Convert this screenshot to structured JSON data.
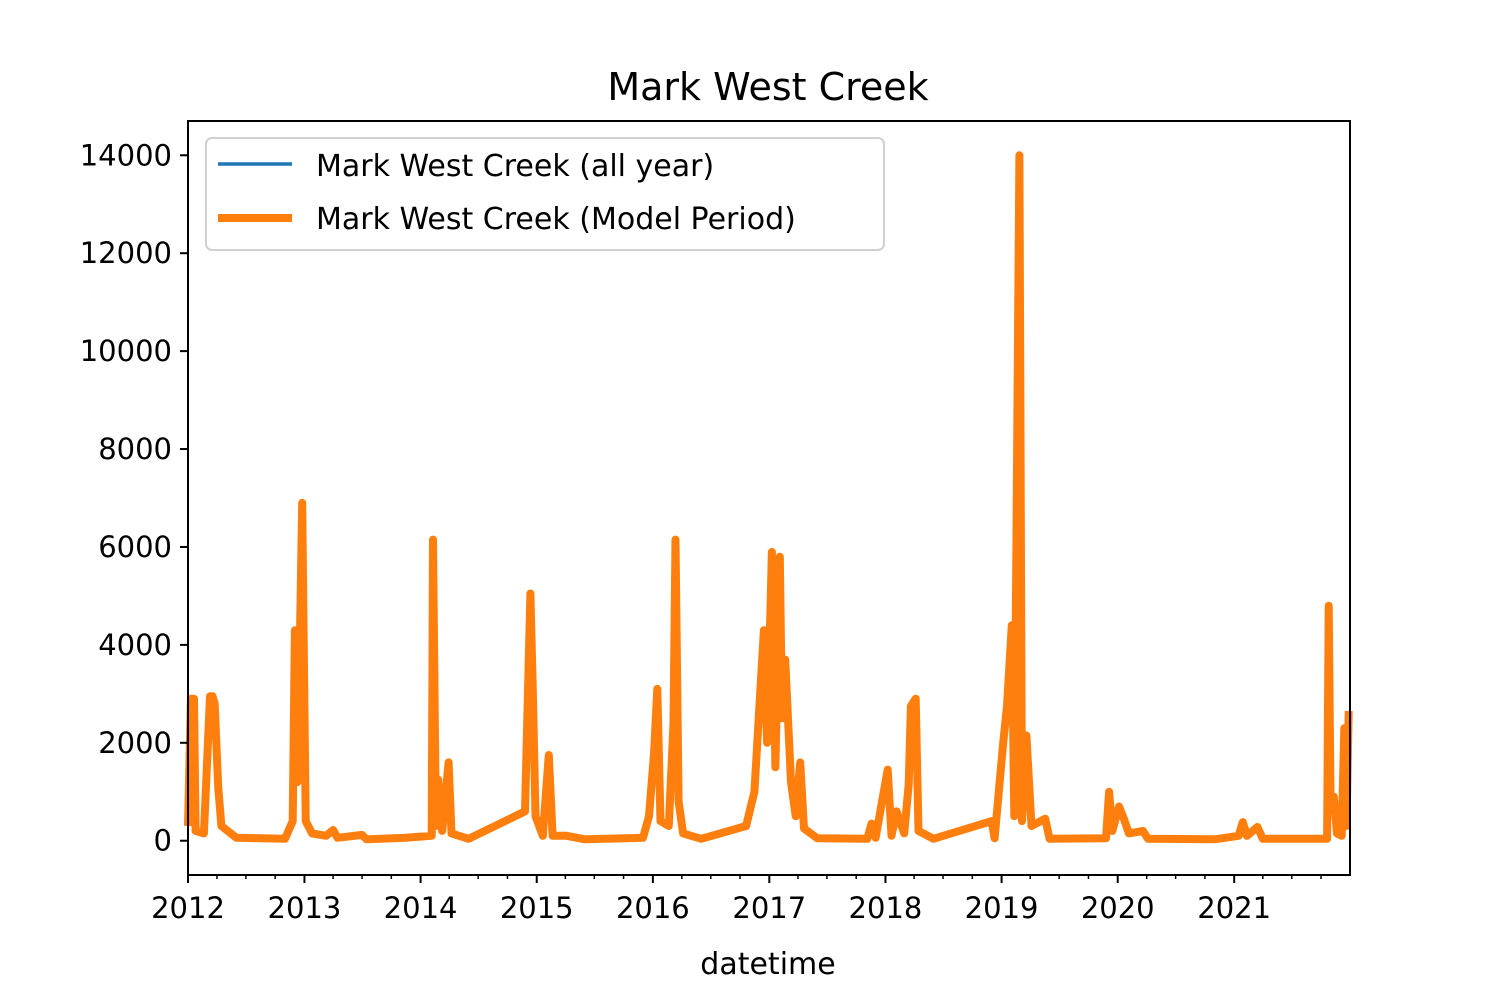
{
  "chart_data": {
    "type": "line",
    "title": "Mark West Creek",
    "xlabel": "datetime",
    "ylabel": "",
    "xlim": [
      "2012-01-01",
      "2021-12-31"
    ],
    "ylim": [
      -700,
      14700
    ],
    "x_ticks": [
      "2012",
      "2013",
      "2014",
      "2015",
      "2016",
      "2017",
      "2018",
      "2019",
      "2020",
      "2021"
    ],
    "y_ticks": [
      0,
      2000,
      4000,
      6000,
      8000,
      10000,
      12000,
      14000
    ],
    "grid": false,
    "legend": {
      "placement": "upper-left",
      "entries": [
        "Mark West Creek (all year)",
        "Mark West Creek (Model Period)"
      ]
    },
    "colors": {
      "all_year": "#1f77b4",
      "model_period": "#ff7f0e"
    },
    "series": [
      {
        "name": "Mark West Creek (all year)",
        "points": [
          [
            "2012-01-01",
            300
          ],
          [
            "2012-01-10",
            2900
          ],
          [
            "2012-01-20",
            2900
          ],
          [
            "2012-01-25",
            200
          ],
          [
            "2012-02-20",
            150
          ],
          [
            "2012-03-10",
            2950
          ],
          [
            "2012-03-18",
            2950
          ],
          [
            "2012-03-25",
            2800
          ],
          [
            "2012-04-05",
            1100
          ],
          [
            "2012-04-15",
            300
          ],
          [
            "2012-06-01",
            60
          ],
          [
            "2012-11-01",
            40
          ],
          [
            "2012-11-25",
            400
          ],
          [
            "2012-12-02",
            4300
          ],
          [
            "2012-12-10",
            1200
          ],
          [
            "2012-12-25",
            6900
          ],
          [
            "2013-01-05",
            400
          ],
          [
            "2013-01-25",
            150
          ],
          [
            "2013-03-10",
            100
          ],
          [
            "2013-04-01",
            220
          ],
          [
            "2013-04-15",
            60
          ],
          [
            "2013-07-01",
            120
          ],
          [
            "2013-07-15",
            30
          ],
          [
            "2013-11-15",
            60
          ],
          [
            "2014-02-05",
            100
          ],
          [
            "2014-02-09",
            6150
          ],
          [
            "2014-02-18",
            300
          ],
          [
            "2014-02-25",
            1250
          ],
          [
            "2014-03-10",
            200
          ],
          [
            "2014-03-30",
            1600
          ],
          [
            "2014-04-08",
            150
          ],
          [
            "2014-06-01",
            40
          ],
          [
            "2014-11-25",
            600
          ],
          [
            "2014-12-12",
            5050
          ],
          [
            "2014-12-20",
            3000
          ],
          [
            "2014-12-28",
            500
          ],
          [
            "2015-01-20",
            100
          ],
          [
            "2015-02-08",
            1750
          ],
          [
            "2015-02-20",
            100
          ],
          [
            "2015-04-05",
            100
          ],
          [
            "2015-06-01",
            30
          ],
          [
            "2015-12-01",
            60
          ],
          [
            "2015-12-20",
            500
          ],
          [
            "2016-01-05",
            1800
          ],
          [
            "2016-01-15",
            3100
          ],
          [
            "2016-01-25",
            400
          ],
          [
            "2016-02-20",
            300
          ],
          [
            "2016-03-06",
            2400
          ],
          [
            "2016-03-12",
            6150
          ],
          [
            "2016-03-22",
            800
          ],
          [
            "2016-04-05",
            150
          ],
          [
            "2016-06-01",
            40
          ],
          [
            "2016-10-20",
            300
          ],
          [
            "2016-11-15",
            1000
          ],
          [
            "2016-12-15",
            4300
          ],
          [
            "2016-12-25",
            2000
          ],
          [
            "2017-01-09",
            5900
          ],
          [
            "2017-01-20",
            1500
          ],
          [
            "2017-02-03",
            5800
          ],
          [
            "2017-02-10",
            2500
          ],
          [
            "2017-02-20",
            3700
          ],
          [
            "2017-03-10",
            1200
          ],
          [
            "2017-03-25",
            500
          ],
          [
            "2017-04-08",
            1600
          ],
          [
            "2017-04-20",
            250
          ],
          [
            "2017-06-01",
            50
          ],
          [
            "2017-11-05",
            40
          ],
          [
            "2017-11-18",
            350
          ],
          [
            "2017-12-01",
            60
          ],
          [
            "2018-01-08",
            1450
          ],
          [
            "2018-01-20",
            100
          ],
          [
            "2018-02-05",
            600
          ],
          [
            "2018-03-01",
            150
          ],
          [
            "2018-03-15",
            1150
          ],
          [
            "2018-03-22",
            2750
          ],
          [
            "2018-04-06",
            2900
          ],
          [
            "2018-04-15",
            200
          ],
          [
            "2018-06-01",
            40
          ],
          [
            "2018-12-01",
            400
          ],
          [
            "2018-12-10",
            50
          ],
          [
            "2019-01-06",
            2000
          ],
          [
            "2019-01-18",
            2750
          ],
          [
            "2019-02-02",
            4400
          ],
          [
            "2019-02-10",
            500
          ],
          [
            "2019-02-26",
            14000
          ],
          [
            "2019-03-06",
            400
          ],
          [
            "2019-03-20",
            2150
          ],
          [
            "2019-04-05",
            300
          ],
          [
            "2019-05-18",
            450
          ],
          [
            "2019-06-01",
            40
          ],
          [
            "2019-11-25",
            50
          ],
          [
            "2019-12-05",
            1000
          ],
          [
            "2019-12-15",
            200
          ],
          [
            "2020-01-05",
            700
          ],
          [
            "2020-01-20",
            450
          ],
          [
            "2020-02-05",
            150
          ],
          [
            "2020-03-20",
            200
          ],
          [
            "2020-04-05",
            40
          ],
          [
            "2020-11-01",
            30
          ],
          [
            "2021-01-15",
            100
          ],
          [
            "2021-01-28",
            380
          ],
          [
            "2021-02-10",
            100
          ],
          [
            "2021-03-15",
            280
          ],
          [
            "2021-04-01",
            40
          ],
          [
            "2021-10-20",
            40
          ],
          [
            "2021-10-25",
            4800
          ],
          [
            "2021-10-31",
            700
          ],
          [
            "2021-11-10",
            900
          ],
          [
            "2021-11-20",
            150
          ],
          [
            "2021-12-05",
            100
          ],
          [
            "2021-12-13",
            2300
          ],
          [
            "2021-12-20",
            300
          ],
          [
            "2021-12-27",
            2650
          ]
        ]
      },
      {
        "name": "Mark West Creek (Model Period)",
        "points": [
          [
            "2012-01-01",
            300
          ],
          [
            "2012-01-10",
            2900
          ],
          [
            "2012-01-20",
            2900
          ],
          [
            "2012-01-25",
            200
          ],
          [
            "2012-02-20",
            150
          ],
          [
            "2012-03-10",
            2950
          ],
          [
            "2012-03-18",
            2950
          ],
          [
            "2012-03-25",
            2800
          ],
          [
            "2012-04-05",
            1100
          ],
          [
            "2012-04-15",
            300
          ],
          [
            "2012-06-01",
            60
          ],
          [
            "2012-11-01",
            40
          ],
          [
            "2012-11-25",
            400
          ],
          [
            "2012-12-02",
            4300
          ],
          [
            "2012-12-10",
            1200
          ],
          [
            "2012-12-25",
            6900
          ],
          [
            "2013-01-05",
            400
          ],
          [
            "2013-01-25",
            150
          ],
          [
            "2013-03-10",
            100
          ],
          [
            "2013-04-01",
            220
          ],
          [
            "2013-04-15",
            60
          ],
          [
            "2013-07-01",
            120
          ],
          [
            "2013-07-15",
            30
          ],
          [
            "2013-11-15",
            60
          ],
          [
            "2014-02-05",
            100
          ],
          [
            "2014-02-09",
            6150
          ],
          [
            "2014-02-18",
            300
          ],
          [
            "2014-02-25",
            1250
          ],
          [
            "2014-03-10",
            200
          ],
          [
            "2014-03-30",
            1600
          ],
          [
            "2014-04-08",
            150
          ],
          [
            "2014-06-01",
            40
          ],
          [
            "2014-11-25",
            600
          ],
          [
            "2014-12-12",
            5050
          ],
          [
            "2014-12-20",
            3000
          ],
          [
            "2014-12-28",
            500
          ],
          [
            "2015-01-20",
            100
          ],
          [
            "2015-02-08",
            1750
          ],
          [
            "2015-02-20",
            100
          ],
          [
            "2015-04-05",
            100
          ],
          [
            "2015-06-01",
            30
          ],
          [
            "2015-12-01",
            60
          ],
          [
            "2015-12-20",
            500
          ],
          [
            "2016-01-05",
            1800
          ],
          [
            "2016-01-15",
            3100
          ],
          [
            "2016-01-25",
            400
          ],
          [
            "2016-02-20",
            300
          ],
          [
            "2016-03-06",
            2400
          ],
          [
            "2016-03-12",
            6150
          ],
          [
            "2016-03-22",
            800
          ],
          [
            "2016-04-05",
            150
          ],
          [
            "2016-06-01",
            40
          ],
          [
            "2016-10-20",
            300
          ],
          [
            "2016-11-15",
            1000
          ],
          [
            "2016-12-15",
            4300
          ],
          [
            "2016-12-25",
            2000
          ],
          [
            "2017-01-09",
            5900
          ],
          [
            "2017-01-20",
            1500
          ],
          [
            "2017-02-03",
            5800
          ],
          [
            "2017-02-10",
            2500
          ],
          [
            "2017-02-20",
            3700
          ],
          [
            "2017-03-10",
            1200
          ],
          [
            "2017-03-25",
            500
          ],
          [
            "2017-04-08",
            1600
          ],
          [
            "2017-04-20",
            250
          ],
          [
            "2017-06-01",
            50
          ],
          [
            "2017-11-05",
            40
          ],
          [
            "2017-11-18",
            350
          ],
          [
            "2017-12-01",
            60
          ],
          [
            "2018-01-08",
            1450
          ],
          [
            "2018-01-20",
            100
          ],
          [
            "2018-02-05",
            600
          ],
          [
            "2018-03-01",
            150
          ],
          [
            "2018-03-15",
            1150
          ],
          [
            "2018-03-22",
            2750
          ],
          [
            "2018-04-06",
            2900
          ],
          [
            "2018-04-15",
            200
          ],
          [
            "2018-06-01",
            40
          ],
          [
            "2018-12-01",
            400
          ],
          [
            "2018-12-10",
            50
          ],
          [
            "2019-01-06",
            2000
          ],
          [
            "2019-01-18",
            2750
          ],
          [
            "2019-02-02",
            4400
          ],
          [
            "2019-02-10",
            500
          ],
          [
            "2019-02-26",
            14000
          ],
          [
            "2019-03-06",
            400
          ],
          [
            "2019-03-20",
            2150
          ],
          [
            "2019-04-05",
            300
          ],
          [
            "2019-05-18",
            450
          ],
          [
            "2019-06-01",
            40
          ],
          [
            "2019-11-25",
            50
          ],
          [
            "2019-12-05",
            1000
          ],
          [
            "2019-12-15",
            200
          ],
          [
            "2020-01-05",
            700
          ],
          [
            "2020-01-20",
            450
          ],
          [
            "2020-02-05",
            150
          ],
          [
            "2020-03-20",
            200
          ],
          [
            "2020-04-05",
            40
          ],
          [
            "2020-11-01",
            30
          ],
          [
            "2021-01-15",
            100
          ],
          [
            "2021-01-28",
            380
          ],
          [
            "2021-02-10",
            100
          ],
          [
            "2021-03-15",
            280
          ],
          [
            "2021-04-01",
            40
          ],
          [
            "2021-10-20",
            40
          ],
          [
            "2021-10-25",
            4800
          ],
          [
            "2021-10-31",
            700
          ],
          [
            "2021-11-10",
            900
          ],
          [
            "2021-11-20",
            150
          ],
          [
            "2021-12-05",
            100
          ],
          [
            "2021-12-13",
            2300
          ],
          [
            "2021-12-20",
            300
          ],
          [
            "2021-12-27",
            2650
          ]
        ]
      }
    ]
  }
}
